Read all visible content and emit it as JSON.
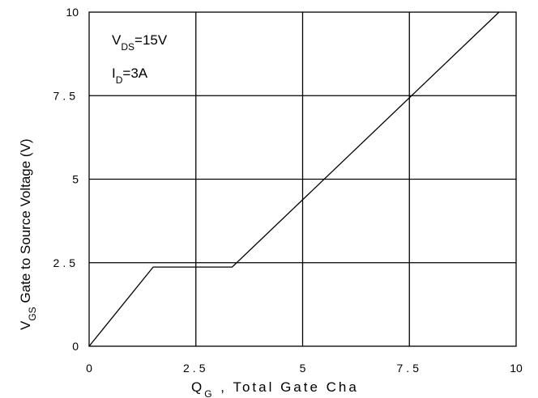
{
  "chart_data": {
    "type": "line",
    "title": "",
    "xlabel": {
      "main": "Q",
      "sub": "G",
      "rest": " , Total Gate Cha"
    },
    "ylabel": {
      "main": "V",
      "sub": "GS",
      "rest": "  Gate to Source Voltage (V)"
    },
    "xlim": [
      0,
      10
    ],
    "ylim": [
      0,
      10
    ],
    "x_ticks": [
      {
        "value": 0,
        "label": "0"
      },
      {
        "value": 2.5,
        "label": "2.5"
      },
      {
        "value": 5,
        "label": "5"
      },
      {
        "value": 7.5,
        "label": "7.5"
      },
      {
        "value": 10,
        "label": "10"
      }
    ],
    "y_ticks": [
      {
        "value": 0,
        "label": "0"
      },
      {
        "value": 2.5,
        "label": "2.5"
      },
      {
        "value": 5,
        "label": "5"
      },
      {
        "value": 7.5,
        "label": "7.5"
      },
      {
        "value": 10,
        "label": "10"
      }
    ],
    "grid": true,
    "annotations": [
      {
        "main": "V",
        "sub": "DS",
        "rest": "=15V"
      },
      {
        "main": "I",
        "sub": "D",
        "rest": "=3A"
      }
    ],
    "series": [
      {
        "x": [
          0,
          1.5,
          3.35,
          9.6
        ],
        "y": [
          0,
          2.37,
          2.37,
          10
        ]
      }
    ]
  }
}
